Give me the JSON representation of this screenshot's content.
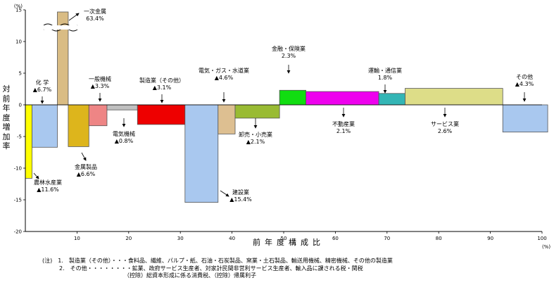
{
  "chart_data": {
    "type": "variable-width bar",
    "ylabel": "対前年度増加率",
    "xlabel": "前年度構成比",
    "x_unit": "(%)",
    "y_unit": "(%)",
    "xlim": [
      0,
      100
    ],
    "ylim": [
      -20,
      15
    ],
    "x_ticks": [
      "10",
      "20",
      "30",
      "40",
      "50",
      "60",
      "70",
      "80",
      "90",
      "100"
    ],
    "y_ticks": [
      "15",
      "10",
      "5",
      "0",
      "-5",
      "-10",
      "-15",
      "-20"
    ],
    "y_break": true,
    "bars": [
      {
        "name": "農林水産業",
        "share": 1.3,
        "growth": -11.6,
        "value_text": "▲11.6%",
        "color": "#ffff00"
      },
      {
        "name": "化 学",
        "share": 4.9,
        "growth": -6.7,
        "value_text": "▲6.7%",
        "color": "#a9c8ef"
      },
      {
        "name": "一次金属",
        "share": 2.1,
        "growth": 63.4,
        "value_text": "63.4%",
        "color": "#d9bc84"
      },
      {
        "name": "金属製品",
        "share": 4.0,
        "growth": -6.6,
        "value_text": "▲6.6%",
        "color": "#ddb51c"
      },
      {
        "name": "一般機械",
        "share": 3.5,
        "growth": -3.3,
        "value_text": "▲3.3%",
        "color": "#ee8585"
      },
      {
        "name": "電気機械",
        "share": 5.9,
        "growth": -0.8,
        "value_text": "▲0.8%",
        "color": "#c0c0c0"
      },
      {
        "name": "製造業（その他）",
        "share": 9.2,
        "growth": -3.1,
        "value_text": "▲3.1%",
        "color": "#ee0000"
      },
      {
        "name": "建設業",
        "share": 6.4,
        "growth": -15.4,
        "value_text": "▲15.4%",
        "color": "#a9c8ef"
      },
      {
        "name": "電気・ガス・水道業",
        "share": 3.3,
        "growth": -4.6,
        "value_text": "▲4.6%",
        "color": "#ddbf91"
      },
      {
        "name": "卸売・小売業",
        "share": 8.6,
        "growth": -2.1,
        "value_text": "▲2.1%",
        "color": "#99bb33"
      },
      {
        "name": "金融・保険業",
        "share": 5.1,
        "growth": 2.3,
        "value_text": "2.3%",
        "color": "#11dd11"
      },
      {
        "name": "不動産業",
        "share": 14.1,
        "growth": 2.1,
        "value_text": "2.1%",
        "color": "#ee00ee"
      },
      {
        "name": "運輸・通信業",
        "share": 5.1,
        "growth": 1.8,
        "value_text": "1.8%",
        "color": "#33b5b5"
      },
      {
        "name": "サービス業",
        "share": 18.9,
        "growth": 2.6,
        "value_text": "2.6%",
        "color": "#dddd88"
      },
      {
        "name": "その他",
        "share": 8.7,
        "growth": -4.3,
        "value_text": "▲4.3%",
        "color": "#a9c8ef"
      }
    ]
  },
  "notes": [
    "(注)　1.　製造業（その他）・・・食料品、繊維、パルプ・紙、石油・石炭製品、窯業・土石製品、輸送用機械、精密機械、その他の製造業",
    "　　　2.　その他・・・・・・・・鉱業、政府サービス生産者、対家計民間非営利サービス生産者、輸入品に課される税・関税",
    "　　　　　　　　　　　　　　　（控除）総資本形成に係る消費税、（控除）帰属利子"
  ]
}
